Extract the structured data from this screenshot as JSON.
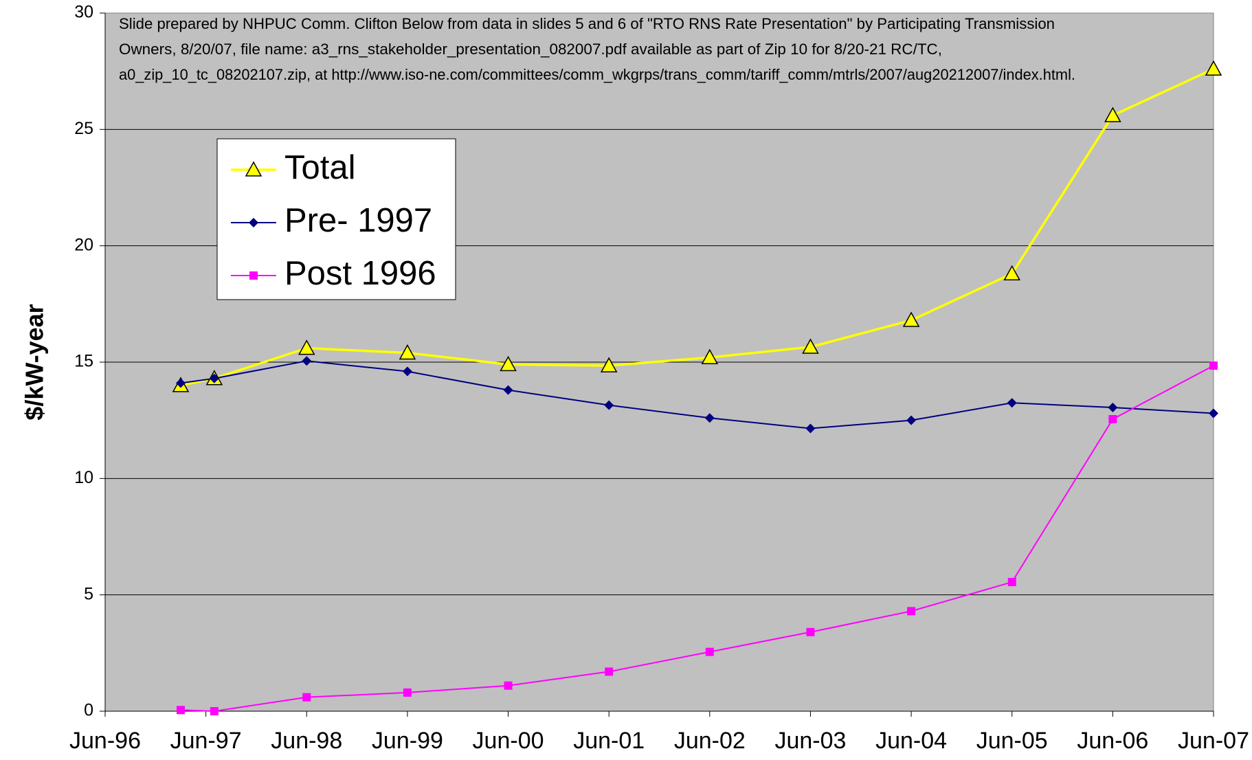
{
  "chart_data": {
    "type": "line",
    "annotation": [
      "Slide prepared by NHPUC Comm. Clifton Below from data in slides 5 and 6 of \"RTO RNS Rate Presentation\" by Participating Transmission",
      "Owners, 8/20/07,  file name: a3_rns_stakeholder_presentation_082007.pdf available as part of  Zip 10 for 8/20-21 RC/TC,",
      "a0_zip_10_tc_08202107.zip, at http://www.iso-ne.com/committees/comm_wkgrps/trans_comm/tariff_comm/mtrls/2007/aug20212007/index.html."
    ],
    "y_label": "$/kW-year",
    "x": [
      "1997-03",
      "1997-07",
      "1998-06",
      "1999-06",
      "2000-06",
      "2001-06",
      "2002-06",
      "2003-06",
      "2004-06",
      "2005-06",
      "2006-06",
      "2007-06"
    ],
    "series": [
      {
        "name": "Total",
        "color": "#ffff00",
        "marker": "triangle",
        "values": [
          14.0,
          14.3,
          15.6,
          15.4,
          14.9,
          14.85,
          15.2,
          15.65,
          16.8,
          18.8,
          25.6,
          27.6
        ]
      },
      {
        "name": "Pre- 1997",
        "color": "#000080",
        "marker": "diamond",
        "values": [
          14.1,
          14.3,
          15.05,
          14.6,
          13.8,
          13.15,
          12.6,
          12.15,
          12.5,
          13.25,
          13.05,
          12.8
        ]
      },
      {
        "name": "Post 1996",
        "color": "#ff00ff",
        "marker": "square",
        "values": [
          0.05,
          0.0,
          0.6,
          0.8,
          1.1,
          1.7,
          2.55,
          3.4,
          4.3,
          5.55,
          12.55,
          14.85
        ]
      }
    ],
    "xlim": [
      "1996-06",
      "2007-06"
    ],
    "xticks": [
      {
        "value": "1996-06",
        "label": "Jun-96"
      },
      {
        "value": "1997-06",
        "label": "Jun-97"
      },
      {
        "value": "1998-06",
        "label": "Jun-98"
      },
      {
        "value": "1999-06",
        "label": "Jun-99"
      },
      {
        "value": "2000-06",
        "label": "Jun-00"
      },
      {
        "value": "2001-06",
        "label": "Jun-01"
      },
      {
        "value": "2002-06",
        "label": "Jun-02"
      },
      {
        "value": "2003-06",
        "label": "Jun-03"
      },
      {
        "value": "2004-06",
        "label": "Jun-04"
      },
      {
        "value": "2005-06",
        "label": "Jun-05"
      },
      {
        "value": "2006-06",
        "label": "Jun-06"
      },
      {
        "value": "2007-06",
        "label": "Jun-07"
      }
    ],
    "ylim": [
      0,
      30
    ],
    "yticks": [
      0,
      5,
      10,
      15,
      20,
      25,
      30
    ],
    "grid": true,
    "legend": "upper-left"
  }
}
